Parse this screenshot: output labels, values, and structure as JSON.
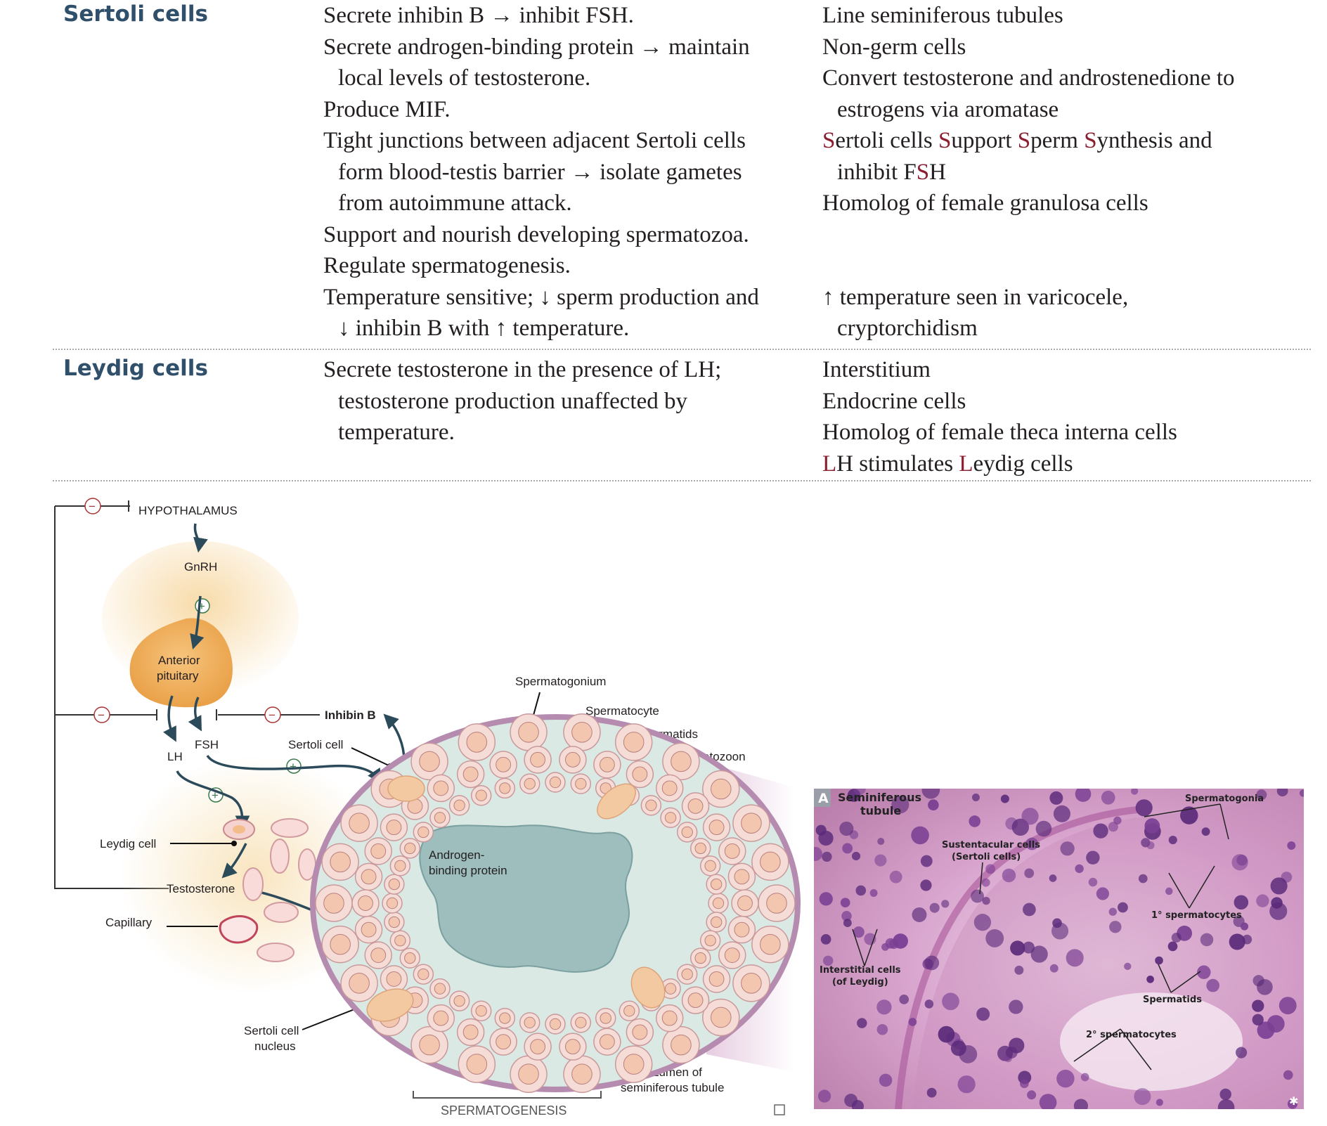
{
  "table": {
    "sertoli": {
      "heading": "Sertoli cells",
      "functions": [
        {
          "text": "Secrete inhibin B → inhibit FSH.",
          "indent": false
        },
        {
          "text": "Secrete androgen-binding protein → maintain",
          "indent": false
        },
        {
          "text": "local levels of testosterone.",
          "indent": true
        },
        {
          "text": "Produce MIF.",
          "indent": false
        },
        {
          "text": "Tight junctions between adjacent Sertoli cells",
          "indent": false
        },
        {
          "text": "form blood-testis barrier → isolate gametes",
          "indent": true
        },
        {
          "text": "from autoimmune attack.",
          "indent": true
        },
        {
          "text": "Support and nourish developing spermatozoa.",
          "indent": false
        },
        {
          "text": "Regulate spermatogenesis.",
          "indent": false
        },
        {
          "text": "Temperature sensitive; ↓ sperm production and",
          "indent": false
        },
        {
          "text": "↓ inhibin B with ↑ temperature.",
          "indent": true
        }
      ],
      "notes_top": [
        {
          "text": "Line seminiferous tubules",
          "indent": false
        },
        {
          "text": "Non-germ cells",
          "indent": false
        },
        {
          "text": "Convert testosterone and androstenedione to",
          "indent": false
        },
        {
          "text": "estrogens via aromatase",
          "indent": true
        }
      ],
      "mnemonic": {
        "s1": "S",
        "t1": "ertoli cells ",
        "s2": "S",
        "t2": "upport ",
        "s3": "S",
        "t3": "perm ",
        "s4": "S",
        "t4": "ynthesis and",
        "line2a": "inhibit F",
        "s5": "S",
        "line2b": "H"
      },
      "homolog": "Homolog of female granulosa cells",
      "temp_note_1": "↑ temperature seen in varicocele,",
      "temp_note_2": "cryptorchidism"
    },
    "leydig": {
      "heading": "Leydig cells",
      "functions": [
        {
          "text": "Secrete testosterone in the presence of LH;",
          "indent": false
        },
        {
          "text": "testosterone production unaffected by",
          "indent": true
        },
        {
          "text": "temperature.",
          "indent": true
        }
      ],
      "notes": [
        "Interstitium",
        "Endocrine cells",
        "Homolog of female theca interna cells"
      ],
      "mnemonic": {
        "a": "L",
        "b": "H stimulates ",
        "c": "L",
        "d": "eydig cells"
      }
    }
  },
  "diagram": {
    "hypothalamus": "HYPOTHALAMUS",
    "gnrh": "GnRH",
    "anterior_pituitary_1": "Anterior",
    "anterior_pituitary_2": "pituitary",
    "lh": "LH",
    "fsh": "FSH",
    "inhibin_b": "Inhibin B",
    "sertoli_cell": "Sertoli cell",
    "leydig_cell": "Leydig cell",
    "testosterone": "Testosterone",
    "capillary": "Capillary",
    "sertoli_nucleus_1": "Sertoli cell",
    "sertoli_nucleus_2": "nucleus",
    "abp_1": "Androgen-",
    "abp_2": "binding protein",
    "spermatogonium": "Spermatogonium",
    "spermatocyte": "Spermatocyte",
    "spermatids": "Spermatids",
    "spermatozoon": "Spermatozoon",
    "lumen_1": "Lumen of",
    "lumen_2": "seminiferous tubule",
    "spermatogenesis": "SPERMATOGENESIS",
    "plus": "+",
    "minus": "−"
  },
  "micrograph": {
    "panel_letter": "A",
    "title_1": "Seminiferous",
    "title_2": "tubule",
    "spermatogonia": "Spermatogonia",
    "sustentacular_1": "Sustentacular cells",
    "sustentacular_2": "(Sertoli cells)",
    "primary": "1° spermatocytes",
    "interstitial_1": "Interstitial cells",
    "interstitial_2": "(of Leydig)",
    "spermatids": "Spermatids",
    "secondary": "2° spermatocytes"
  },
  "colors": {
    "heading": "#2f4f6b",
    "mnemonic": "#8b1e2f",
    "arrow": "#2b4a5a",
    "pituitary": "#f0b25e",
    "tubule_wall": "#b58cb0",
    "lumen": "#9ebdbd",
    "stain_bg": "#d9a6cf",
    "nucleus_stain": "#5a2a7a"
  }
}
